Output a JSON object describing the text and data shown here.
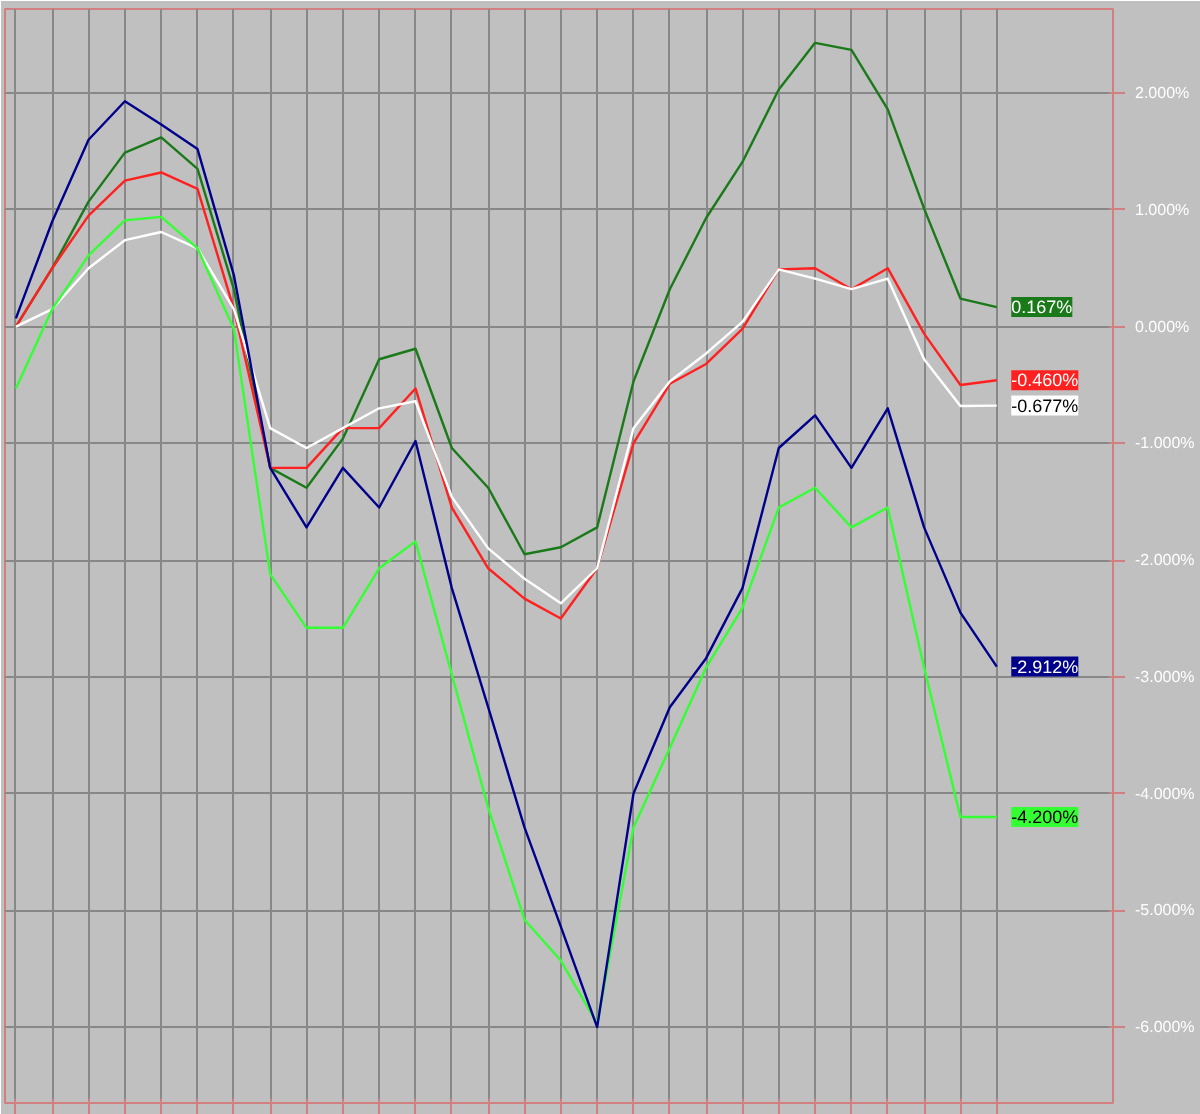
{
  "chart_data": {
    "type": "line",
    "ylim": [
      -6.65,
      2.72
    ],
    "categories": [
      null,
      null,
      null,
      null,
      null,
      null,
      null,
      null,
      null,
      null,
      null,
      null,
      null,
      null,
      null,
      null,
      null,
      null,
      null,
      null,
      null,
      null,
      null,
      null,
      null,
      null,
      null,
      null
    ],
    "yticks": [
      {
        "value": 2,
        "label": "2.000%"
      },
      {
        "value": 1,
        "label": "1.000%"
      },
      {
        "value": 0,
        "label": "0.000%"
      },
      {
        "value": -1,
        "label": "-1.000%"
      },
      {
        "value": -2,
        "label": "-2.000%"
      },
      {
        "value": -3,
        "label": "-3.000%"
      },
      {
        "value": -4,
        "label": "-4.000%"
      },
      {
        "value": -5,
        "label": "-5.000%"
      },
      {
        "value": -6,
        "label": "-6.000%"
      }
    ],
    "grid": true,
    "line_style": "solid",
    "series": [
      {
        "color": "#1a7a1a",
        "values": [
          0,
          0.5,
          1.07,
          1.49,
          1.62,
          1.35,
          0.32,
          -1.21,
          -1.38,
          -0.96,
          -0.28,
          -0.19,
          -1.04,
          -1.38,
          -1.95,
          -1.89,
          -1.72,
          -0.47,
          0.32,
          0.93,
          1.41,
          2.03,
          2.43,
          2.37,
          1.86,
          1.01,
          0.24,
          0.167
        ],
        "value_labels": [
          null,
          null,
          null,
          null,
          null,
          null,
          null,
          null,
          null,
          null,
          null,
          null,
          null,
          null,
          null,
          null,
          null,
          null,
          null,
          null,
          null,
          null,
          null,
          null,
          null,
          null,
          null,
          "0.167%"
        ]
      },
      {
        "color": "#ff2020",
        "values": [
          0,
          0.5,
          0.95,
          1.25,
          1.32,
          1.18,
          0.15,
          -1.21,
          -1.21,
          -0.87,
          -0.87,
          -0.53,
          -1.55,
          -2.07,
          -2.33,
          -2.5,
          -2.07,
          -1.0,
          -0.49,
          -0.32,
          -0.02,
          0.49,
          0.5,
          0.32,
          0.5,
          -0.06,
          -0.5,
          -0.46
        ],
        "value_labels": [
          null,
          null,
          null,
          null,
          null,
          null,
          null,
          null,
          null,
          null,
          null,
          null,
          null,
          null,
          null,
          null,
          null,
          null,
          null,
          null,
          null,
          null,
          null,
          null,
          null,
          null,
          null,
          "-0.460%"
        ]
      },
      {
        "color": "#ffffff",
        "values": [
          0,
          0.15,
          0.5,
          0.74,
          0.81,
          0.67,
          0.15,
          -0.87,
          -1.04,
          -0.87,
          -0.7,
          -0.64,
          -1.46,
          -1.9,
          -2.16,
          -2.37,
          -2.07,
          -0.87,
          -0.47,
          -0.23,
          0.04,
          0.49,
          0.41,
          0.32,
          0.41,
          -0.28,
          -0.68,
          -0.677
        ],
        "value_labels": [
          null,
          null,
          null,
          null,
          null,
          null,
          null,
          null,
          null,
          null,
          null,
          null,
          null,
          null,
          null,
          null,
          null,
          null,
          null,
          null,
          null,
          null,
          null,
          null,
          null,
          null,
          null,
          "-0.677%"
        ]
      },
      {
        "color": "#33ff33",
        "values": [
          -0.53,
          0.15,
          0.61,
          0.91,
          0.94,
          0.67,
          -0.02,
          -2.12,
          -2.58,
          -2.58,
          -2.07,
          -1.84,
          -2.98,
          -4.12,
          -5.08,
          -5.43,
          -5.97,
          -4.29,
          -3.61,
          -2.92,
          -2.41,
          -1.55,
          -1.38,
          -1.72,
          -1.55,
          -2.92,
          -4.2,
          -4.2
        ],
        "value_labels": [
          null,
          null,
          null,
          null,
          null,
          null,
          null,
          null,
          null,
          null,
          null,
          null,
          null,
          null,
          null,
          null,
          null,
          null,
          null,
          null,
          null,
          null,
          null,
          null,
          null,
          null,
          null,
          "-4.200%"
        ]
      },
      {
        "color": "#00008b",
        "values": [
          0.07,
          0.9,
          1.6,
          1.93,
          1.73,
          1.52,
          0.44,
          -1.21,
          -1.72,
          -1.21,
          -1.55,
          -0.98,
          -2.24,
          -3.26,
          -4.29,
          -5.14,
          -6.0,
          -4.0,
          -3.26,
          -2.84,
          -2.24,
          -1.04,
          -0.76,
          -1.21,
          -0.7,
          -1.72,
          -2.45,
          -2.912
        ],
        "value_labels": [
          null,
          null,
          null,
          null,
          null,
          null,
          null,
          null,
          null,
          null,
          null,
          null,
          null,
          null,
          null,
          null,
          null,
          null,
          null,
          null,
          null,
          null,
          null,
          null,
          null,
          null,
          null,
          "-2.912%"
        ]
      }
    ]
  }
}
